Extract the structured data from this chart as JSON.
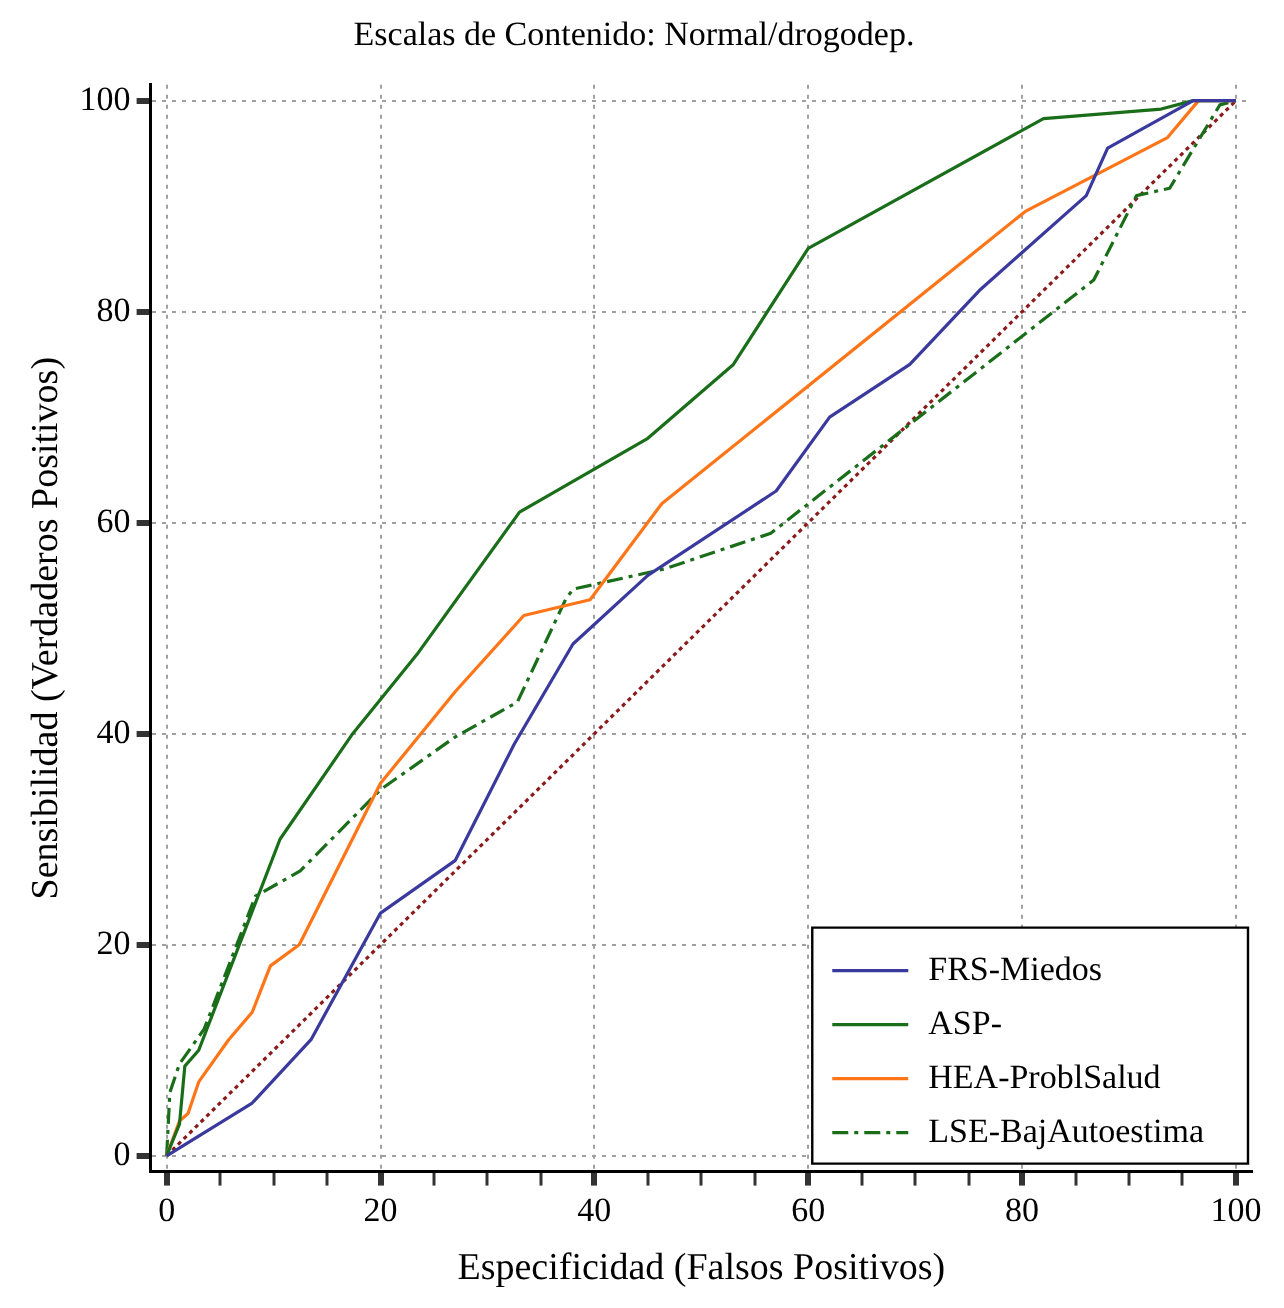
{
  "chart_data": {
    "type": "line",
    "title": "Escalas de Contenido: Normal/drogodep.",
    "xlabel": "Especificidad (Falsos Positivos)",
    "ylabel": "Sensibilidad (Verdaderos Positivos)",
    "xlim": [
      -1.5,
      101.5
    ],
    "ylim": [
      -1.5,
      101.5
    ],
    "xticks": [
      0,
      {
        "value": 5,
        "label": null
      },
      {
        "value": 10,
        "label": null
      },
      {
        "value": 15,
        "label": null
      },
      20,
      {
        "value": 25,
        "label": null
      },
      {
        "value": 30,
        "label": null
      },
      {
        "value": 35,
        "label": null
      },
      40,
      {
        "value": 45,
        "label": null
      },
      {
        "value": 50,
        "label": null
      },
      {
        "value": 55,
        "label": null
      },
      60,
      {
        "value": 65,
        "label": null
      },
      {
        "value": 70,
        "label": null
      },
      {
        "value": 75,
        "label": null
      },
      80,
      {
        "value": 85,
        "label": null
      },
      {
        "value": 90,
        "label": null
      },
      {
        "value": 95,
        "label": null
      },
      100
    ],
    "yticks": [
      0,
      20,
      40,
      60,
      80,
      100
    ],
    "grid": true,
    "legend": "bottom right",
    "marker": "none",
    "series": [
      {
        "name": "FRS-Miedos",
        "color": "#3a3a9e",
        "line_style": "solid",
        "x": [
          0,
          8,
          13.5,
          20,
          27,
          32.5,
          38,
          45,
          57,
          62,
          69.5,
          76,
          86,
          88,
          96,
          100
        ],
        "values": [
          0,
          5,
          11,
          23,
          28,
          39,
          48.5,
          55,
          63,
          70,
          75,
          82,
          91,
          95.5,
          100,
          100
        ]
      },
      {
        "name": "ASP-",
        "color": "#1a6e1a",
        "line_style": "solid",
        "x": [
          0,
          1.2,
          1.7,
          3,
          10.6,
          17.4,
          23.4,
          33,
          45,
          53,
          60,
          82,
          93,
          96,
          100
        ],
        "values": [
          0,
          3,
          8.5,
          10,
          30,
          40,
          47.5,
          61,
          68,
          75,
          86,
          98.3,
          99.2,
          100,
          100
        ]
      },
      {
        "name": "HEA-ProblSalud",
        "color": "#ff7518",
        "line_style": "solid",
        "x": [
          0,
          1.2,
          2,
          3,
          5.8,
          8,
          9.7,
          12.4,
          20,
          27,
          33.4,
          39.6,
          46.3,
          80.3,
          93.6,
          96.5,
          100
        ],
        "values": [
          0,
          3.3,
          4,
          7,
          11,
          13.6,
          18,
          20,
          35.3,
          44,
          51.2,
          52.7,
          61.8,
          89.5,
          96.5,
          100,
          100
        ]
      },
      {
        "name": "LSE-BajAutoestima",
        "color": "#1a6e1a",
        "line_style": "dashed",
        "x": [
          0,
          0.3,
          1.2,
          3.5,
          5.8,
          8.3,
          12.5,
          20,
          27,
          32.8,
          37.3,
          38,
          46.5,
          56.5,
          86.7,
          90.7,
          93.8,
          98.5,
          100
        ],
        "values": [
          0,
          6,
          8.7,
          12,
          18,
          24.6,
          27,
          34.7,
          39.7,
          43,
          52.7,
          53.7,
          55.6,
          59,
          83,
          91,
          91.7,
          99.6,
          100
        ]
      },
      {
        "color": "#8b1a1a",
        "line_style": "dotted",
        "x": [
          0,
          100
        ],
        "values": [
          0,
          100
        ]
      }
    ]
  }
}
